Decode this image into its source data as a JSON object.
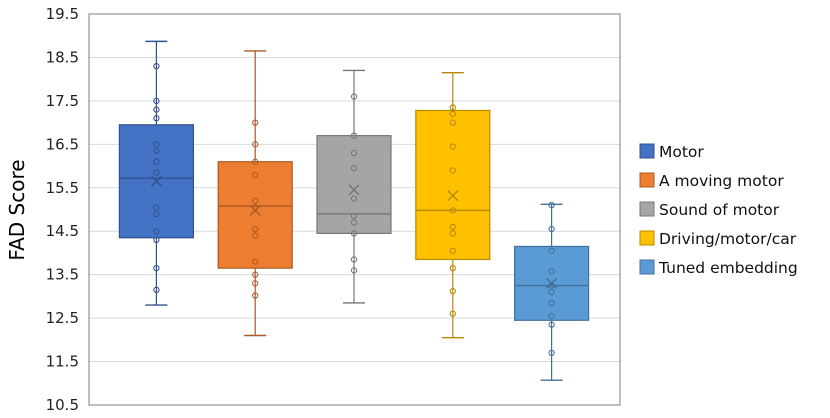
{
  "chart_data": {
    "type": "box",
    "title": "",
    "xlabel": "",
    "ylabel": "FAD Score",
    "ylim": [
      10.5,
      19.5
    ],
    "yticks": [
      "19.5",
      "18.5",
      "17.5",
      "16.5",
      "15.5",
      "14.5",
      "13.5",
      "12.5",
      "11.5",
      "10.5"
    ],
    "grid": "horizontal",
    "legend_position": "right",
    "series": [
      {
        "name": "Motor",
        "color": "#4472C4",
        "min": 12.8,
        "q1": 14.35,
        "median": 15.72,
        "q3": 16.95,
        "max": 18.87,
        "mean": 15.65,
        "points": [
          18.3,
          17.5,
          17.3,
          17.1,
          16.5,
          16.35,
          16.1,
          15.85,
          15.05,
          14.9,
          14.5,
          14.3,
          13.65,
          13.15
        ]
      },
      {
        "name": "A moving motor",
        "color": "#ED7D31",
        "min": 12.1,
        "q1": 13.65,
        "median": 15.08,
        "q3": 16.1,
        "max": 18.65,
        "mean": 14.98,
        "points": [
          17.0,
          16.5,
          16.1,
          15.8,
          15.2,
          15.05,
          14.55,
          14.4,
          13.8,
          13.5,
          13.3,
          13.02
        ]
      },
      {
        "name": "Sound of motor",
        "color": "#A5A5A5",
        "min": 12.85,
        "q1": 14.45,
        "median": 14.9,
        "q3": 16.7,
        "max": 18.2,
        "mean": 15.45,
        "points": [
          17.6,
          16.7,
          16.3,
          15.95,
          15.25,
          14.85,
          14.7,
          14.45,
          13.85,
          13.6
        ]
      },
      {
        "name": "Driving/motor/car",
        "color": "#FFC000",
        "min": 12.05,
        "q1": 13.85,
        "median": 14.98,
        "q3": 17.28,
        "max": 18.15,
        "mean": 15.32,
        "points": [
          17.35,
          17.2,
          17.0,
          16.45,
          15.9,
          14.98,
          14.6,
          14.45,
          14.05,
          13.65,
          13.12,
          12.6
        ]
      },
      {
        "name": "Tuned embedding",
        "color": "#5B9BD5",
        "min": 11.07,
        "q1": 12.45,
        "median": 13.25,
        "q3": 14.15,
        "max": 15.12,
        "mean": 13.3,
        "points": [
          15.1,
          14.55,
          14.05,
          13.58,
          13.25,
          13.1,
          12.85,
          12.55,
          12.35,
          11.7
        ]
      }
    ]
  }
}
